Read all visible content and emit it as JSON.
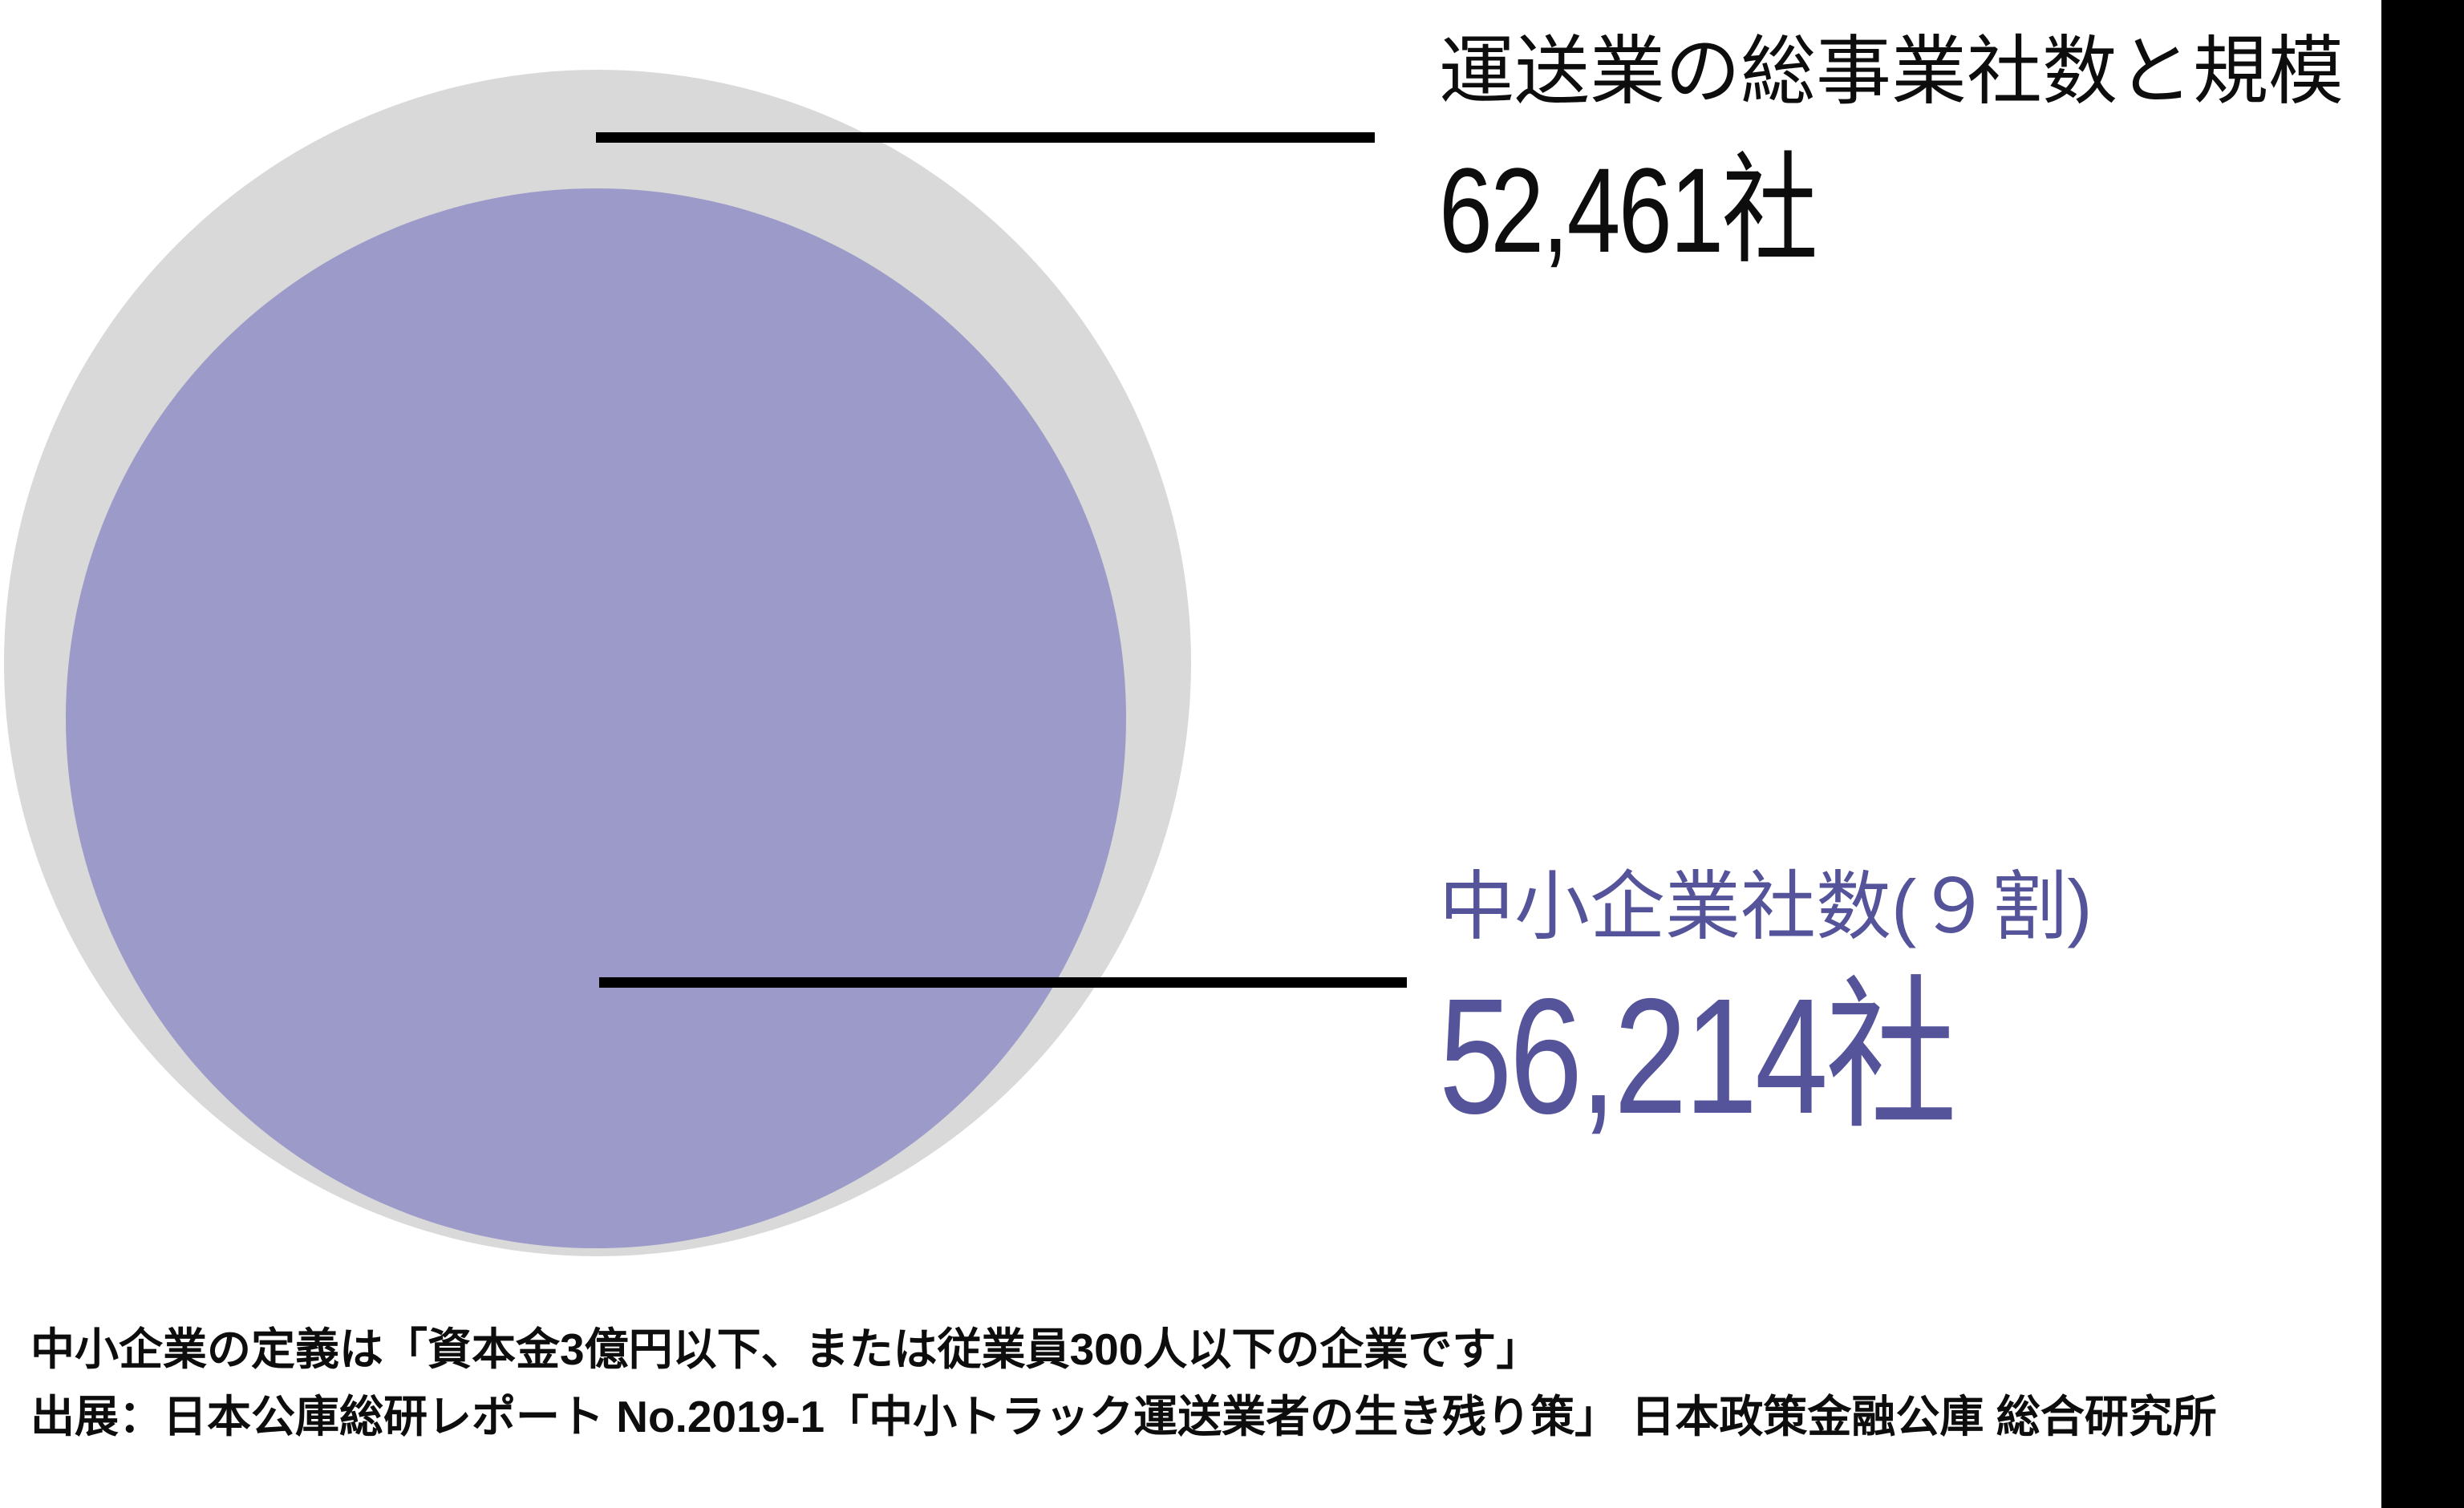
{
  "chart_data": {
    "type": "pie",
    "variant": "nested-proportional-circles",
    "title": "運送業の総事業社数と規模",
    "categories": [
      "運送業の総事業社数",
      "中小企業社数"
    ],
    "values": [
      62461,
      56214
    ],
    "value_labels": [
      "62,461社",
      "56,214社"
    ],
    "sme_share_note": "９割",
    "legend_position": "none",
    "grid": false
  },
  "annotations": {
    "total": {
      "label": "運送業の総事業社数と規模",
      "value": "62,461",
      "unit": "社"
    },
    "sme": {
      "label": "中小企業社数(９割)",
      "value": "56,214",
      "unit": "社"
    }
  },
  "footnotes": {
    "definition": "中小企業の定義は「資本金3億円以下、または従業員300人以下の企業です」",
    "source": "出展：日本公庫総研レポート No.2019-1「中小トラック運送業者の生き残り策」 日本政策金融公庫 総合研究所"
  },
  "colors": {
    "gray-fill": "#d9d9d9",
    "purple-fill": "#9c9ac8",
    "purple-text": "#55549b",
    "text": "#0d0d0d",
    "leader-line": "#000000",
    "side-bar": "#000000"
  }
}
